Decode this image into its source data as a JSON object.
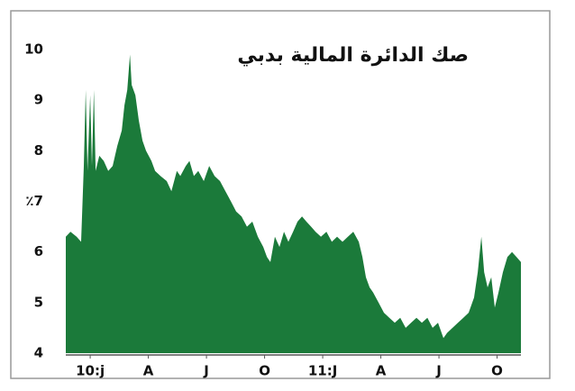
{
  "chart_data": {
    "type": "area",
    "title": "صك الدائرة المالية بدبي",
    "color": "#1b7a3a",
    "x": [
      -1.26,
      -1.02,
      -0.7,
      -0.47,
      -0.33,
      -0.23,
      -0.14,
      0,
      0.09,
      0.19,
      0.28,
      0.47,
      0.7,
      0.93,
      1.16,
      1.4,
      1.63,
      1.77,
      1.91,
      2.05,
      2.14,
      2.33,
      2.51,
      2.7,
      2.88,
      3.16,
      3.35,
      3.63,
      3.95,
      4.19,
      4.47,
      4.65,
      4.93,
      5.12,
      5.35,
      5.58,
      5.86,
      6.14,
      6.42,
      6.7,
      6.98,
      7.26,
      7.53,
      7.81,
      8.09,
      8.37,
      8.65,
      8.93,
      9.12,
      9.3,
      9.53,
      9.77,
      10.0,
      10.23,
      10.47,
      10.7,
      10.93,
      11.16,
      11.4,
      11.63,
      11.91,
      12.19,
      12.47,
      12.74,
      13.02,
      13.3,
      13.58,
      13.86,
      14.05,
      14.23,
      14.42,
      14.6,
      14.88,
      15.16,
      15.44,
      15.72,
      16.0,
      16.28,
      16.56,
      16.84,
      17.12,
      17.4,
      17.67,
      17.95,
      18.23,
      18.42,
      18.7,
      18.98,
      19.26,
      19.53,
      19.81,
      20.0,
      20.19,
      20.33,
      20.51,
      20.7,
      20.88,
      21.07,
      21.3,
      21.53,
      21.77,
      22.0,
      22.23
    ],
    "values": [
      6.3,
      6.4,
      6.3,
      6.2,
      7.7,
      9.2,
      7.6,
      9.1,
      7.7,
      9.2,
      7.6,
      7.9,
      7.8,
      7.6,
      7.7,
      8.1,
      8.4,
      8.9,
      9.2,
      9.9,
      9.3,
      9.1,
      8.6,
      8.2,
      8.0,
      7.8,
      7.6,
      7.5,
      7.4,
      7.2,
      7.6,
      7.5,
      7.7,
      7.8,
      7.5,
      7.6,
      7.4,
      7.7,
      7.5,
      7.4,
      7.2,
      7.0,
      6.8,
      6.7,
      6.5,
      6.6,
      6.3,
      6.1,
      5.9,
      5.8,
      6.3,
      6.1,
      6.4,
      6.2,
      6.4,
      6.6,
      6.7,
      6.6,
      6.5,
      6.4,
      6.3,
      6.4,
      6.2,
      6.3,
      6.2,
      6.3,
      6.4,
      6.2,
      5.9,
      5.5,
      5.3,
      5.2,
      5.0,
      4.8,
      4.7,
      4.6,
      4.7,
      4.5,
      4.6,
      4.7,
      4.6,
      4.7,
      4.5,
      4.6,
      4.3,
      4.4,
      4.5,
      4.6,
      4.7,
      4.8,
      5.1,
      5.6,
      6.3,
      5.6,
      5.3,
      5.5,
      4.9,
      5.2,
      5.6,
      5.9,
      6.0,
      5.9,
      5.8
    ],
    "xlim": [
      -1.26,
      22.23
    ],
    "xticks": [
      {
        "value": 0,
        "label": "10:j"
      },
      {
        "value": 3,
        "label": "A"
      },
      {
        "value": 6,
        "label": "J"
      },
      {
        "value": 9,
        "label": "O"
      },
      {
        "value": 12,
        "label": "11:J"
      },
      {
        "value": 15,
        "label": "A"
      },
      {
        "value": 18,
        "label": "J"
      },
      {
        "value": 21,
        "label": "O"
      }
    ],
    "ylim": [
      4,
      10
    ],
    "yticks": [
      4,
      5,
      6,
      {
        "value": 7,
        "label": "٪7"
      },
      8,
      9,
      10
    ]
  }
}
